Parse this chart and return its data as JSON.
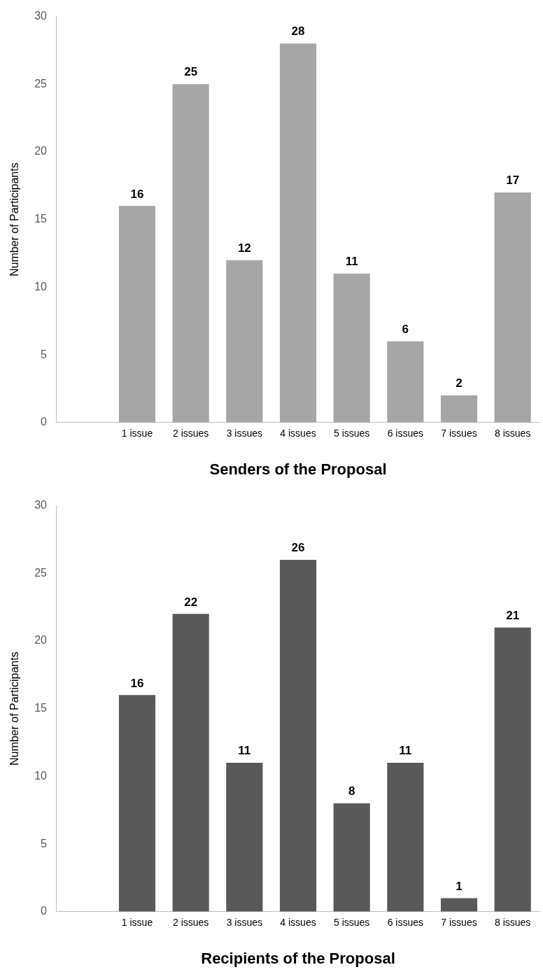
{
  "chart_data": [
    {
      "type": "bar",
      "xlabel": "Senders of the Proposal",
      "ylabel": "Number of Participants",
      "categories": [
        null,
        "1 issue",
        "2 issues",
        "3 issues",
        "4 issues",
        "5 issues",
        "6 issues",
        "7 issues",
        "8 issues"
      ],
      "values": [
        null,
        16,
        25,
        12,
        28,
        11,
        6,
        2,
        17
      ],
      "color": "#a6a6a6",
      "ylim": [
        0,
        30
      ],
      "yticks": [
        0,
        5,
        10,
        15,
        20,
        25,
        30
      ],
      "grid": false,
      "legend": false,
      "data_labels": true
    },
    {
      "type": "bar",
      "xlabel": "Recipients of the Proposal",
      "ylabel": "Number of Participants",
      "categories": [
        null,
        "1 issue",
        "2 issues",
        "3 issues",
        "4 issues",
        "5 issues",
        "6 issues",
        "7 issues",
        "8 issues"
      ],
      "values": [
        null,
        16,
        22,
        11,
        26,
        8,
        11,
        1,
        21
      ],
      "color": "#595959",
      "ylim": [
        0,
        30
      ],
      "yticks": [
        0,
        5,
        10,
        15,
        20,
        25,
        30
      ],
      "grid": false,
      "legend": false,
      "data_labels": true
    }
  ]
}
